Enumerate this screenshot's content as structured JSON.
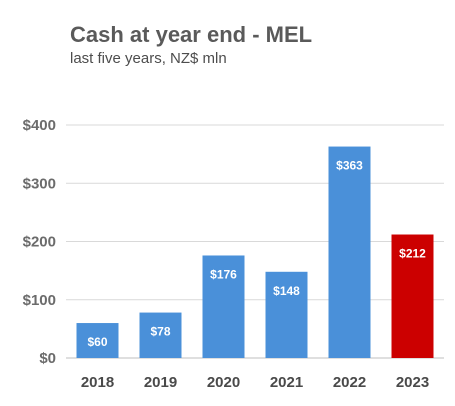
{
  "chart_data": {
    "type": "bar",
    "title": "Cash at year end - MEL",
    "subtitle": "last five years, NZ$ mln",
    "categories": [
      "2018",
      "2019",
      "2020",
      "2021",
      "2022",
      "2023"
    ],
    "values": [
      60,
      78,
      176,
      148,
      363,
      212
    ],
    "data_labels": [
      "$60",
      "$78",
      "$176",
      "$148",
      "$363",
      "$212"
    ],
    "ylim": [
      0,
      400
    ],
    "yticks": [
      0,
      100,
      200,
      300,
      400
    ],
    "ytick_labels": [
      "$0",
      "$100",
      "$200",
      "$300",
      "$400"
    ],
    "grid": true,
    "legend": "none",
    "colors": {
      "bar_default": "#4a90d9",
      "bar_highlight": "#cc0000",
      "grid": "#d9d9d9",
      "axis": "#bfbfbf"
    },
    "highlight_index": 5
  }
}
